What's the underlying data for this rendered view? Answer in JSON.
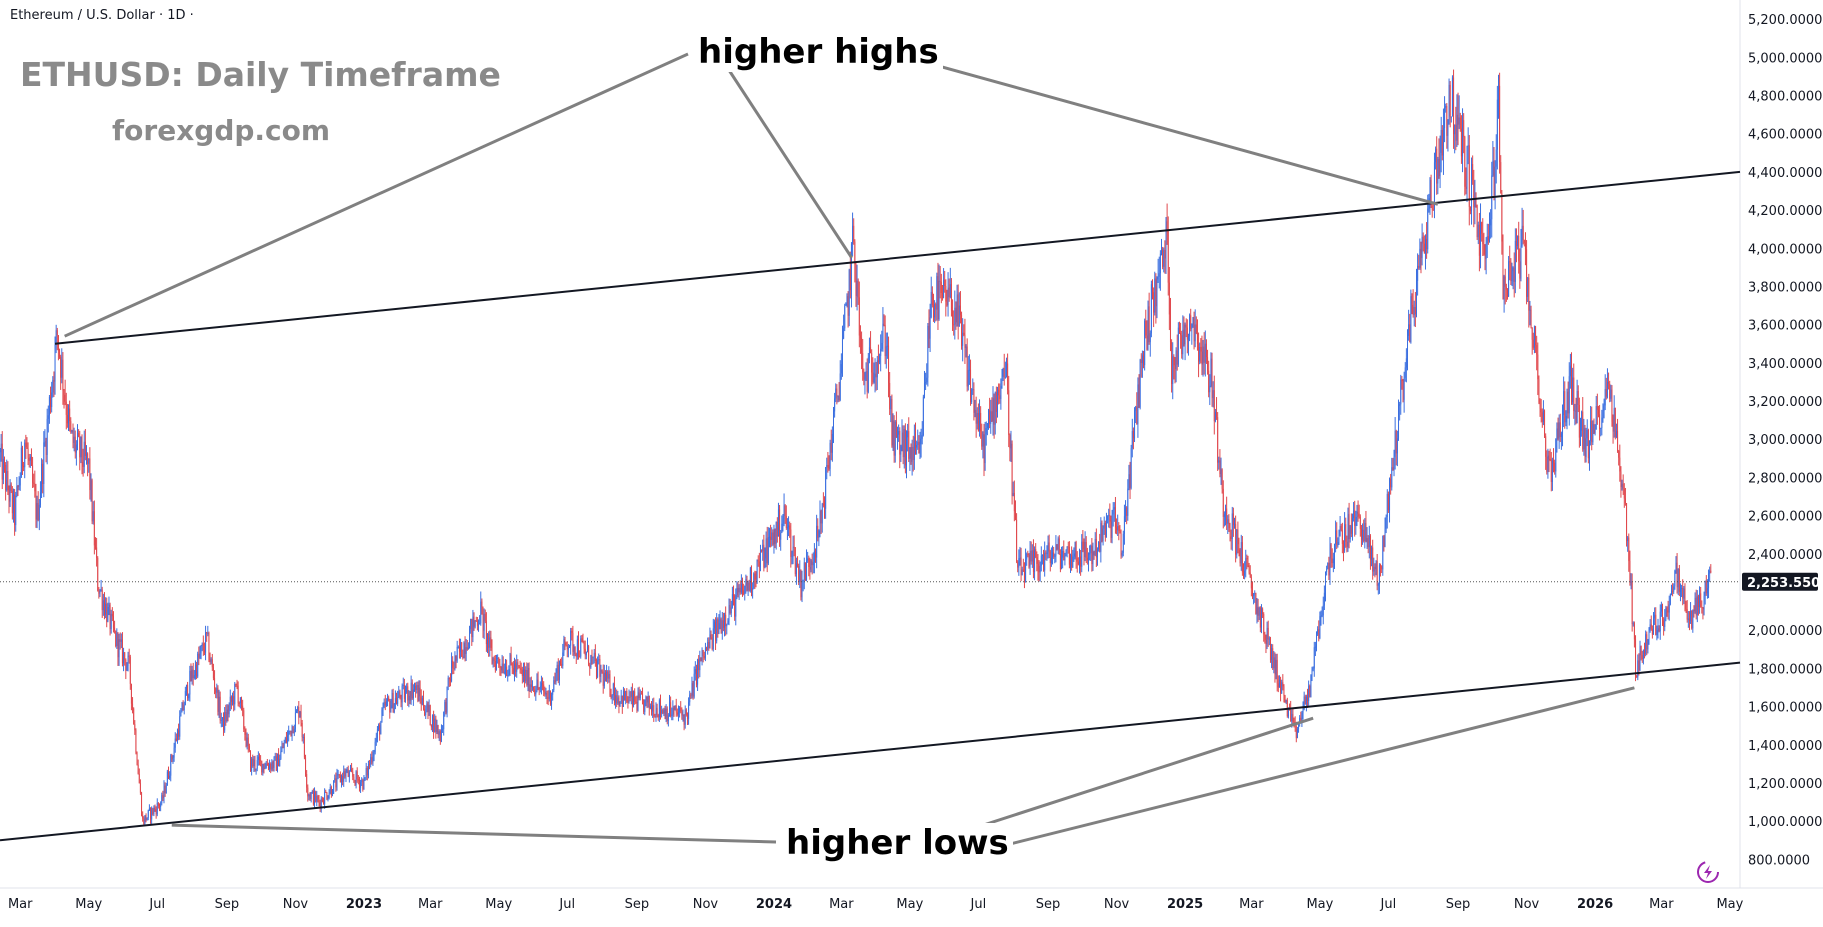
{
  "header": {
    "symbol_text": "Ethereum / U.S. Dollar · 1D ·"
  },
  "title": "ETHUSD: Daily Timeframe",
  "website": "forexgdp.com",
  "annotations": {
    "higher_highs": "higher highs",
    "higher_lows": "higher lows"
  },
  "colors": {
    "up": "#3b6fe0",
    "down": "#e0474c",
    "trendline": "#131722",
    "pointer": "#808080",
    "current_price_bg": "#131722"
  },
  "icons": {
    "corner": "lightning-circle-icon"
  },
  "chart_data": {
    "type": "candlestick",
    "title": "ETHUSD: Daily Timeframe",
    "x_axis": {
      "start": "2022-02-11",
      "end": "2026-05-10",
      "ticks": [
        {
          "date": "2022-03-01",
          "label": "Mar",
          "bold": false
        },
        {
          "date": "2022-05-01",
          "label": "May",
          "bold": false
        },
        {
          "date": "2022-07-01",
          "label": "Jul",
          "bold": false
        },
        {
          "date": "2022-09-01",
          "label": "Sep",
          "bold": false
        },
        {
          "date": "2022-11-01",
          "label": "Nov",
          "bold": false
        },
        {
          "date": "2023-01-01",
          "label": "2023",
          "bold": true
        },
        {
          "date": "2023-03-01",
          "label": "Mar",
          "bold": false
        },
        {
          "date": "2023-05-01",
          "label": "May",
          "bold": false
        },
        {
          "date": "2023-07-01",
          "label": "Jul",
          "bold": false
        },
        {
          "date": "2023-09-01",
          "label": "Sep",
          "bold": false
        },
        {
          "date": "2023-11-01",
          "label": "Nov",
          "bold": false
        },
        {
          "date": "2024-01-01",
          "label": "2024",
          "bold": true
        },
        {
          "date": "2024-03-01",
          "label": "Mar",
          "bold": false
        },
        {
          "date": "2024-05-01",
          "label": "May",
          "bold": false
        },
        {
          "date": "2024-07-01",
          "label": "Jul",
          "bold": false
        },
        {
          "date": "2024-09-01",
          "label": "Sep",
          "bold": false
        },
        {
          "date": "2024-11-01",
          "label": "Nov",
          "bold": false
        },
        {
          "date": "2025-01-01",
          "label": "2025",
          "bold": true
        },
        {
          "date": "2025-03-01",
          "label": "Mar",
          "bold": false
        },
        {
          "date": "2025-05-01",
          "label": "May",
          "bold": false
        },
        {
          "date": "2025-07-01",
          "label": "Jul",
          "bold": false
        },
        {
          "date": "2025-09-01",
          "label": "Sep",
          "bold": false
        },
        {
          "date": "2025-11-01",
          "label": "Nov",
          "bold": false
        },
        {
          "date": "2026-01-01",
          "label": "2026",
          "bold": true
        },
        {
          "date": "2026-03-01",
          "label": "Mar",
          "bold": false
        },
        {
          "date": "2026-05-01",
          "label": "May",
          "bold": false
        }
      ]
    },
    "y_axis": {
      "range": [
        650,
        5300
      ],
      "ticks": [
        800,
        1000,
        1200,
        1400,
        1600,
        1800,
        2000,
        2200,
        2400,
        2600,
        2800,
        3000,
        3200,
        3400,
        3600,
        3800,
        4000,
        4200,
        4400,
        4600,
        4800,
        5000,
        5200
      ],
      "tick_labels": [
        "800.0000",
        "1,000.0000",
        "1,200.0000",
        "1,400.0000",
        "1,600.0000",
        "1,800.0000",
        "2,000.0000",
        "2,200.0000",
        "2,400.0000",
        "2,600.0000",
        "2,800.0000",
        "3,000.0000",
        "3,200.0000",
        "3,400.0000",
        "3,600.0000",
        "3,800.0000",
        "4,000.0000",
        "4,200.0000",
        "4,400.0000",
        "4,600.0000",
        "4,800.0000",
        "5,000.0000",
        "5,200.0000"
      ]
    },
    "current_price": {
      "value": 2253.55,
      "label": "2,253.5500"
    },
    "price_path": [
      [
        "2022-02-11",
        2900
      ],
      [
        "2022-02-24",
        2600
      ],
      [
        "2022-03-05",
        3000
      ],
      [
        "2022-03-16",
        2600
      ],
      [
        "2022-04-03",
        3550
      ],
      [
        "2022-04-15",
        3000
      ],
      [
        "2022-05-01",
        2850
      ],
      [
        "2022-05-09",
        2250
      ],
      [
        "2022-05-25",
        1950
      ],
      [
        "2022-06-06",
        1800
      ],
      [
        "2022-06-18",
        1000
      ],
      [
        "2022-07-05",
        1100
      ],
      [
        "2022-07-28",
        1700
      ],
      [
        "2022-08-14",
        1950
      ],
      [
        "2022-08-28",
        1500
      ],
      [
        "2022-09-10",
        1700
      ],
      [
        "2022-09-22",
        1300
      ],
      [
        "2022-10-15",
        1300
      ],
      [
        "2022-11-05",
        1600
      ],
      [
        "2022-11-12",
        1150
      ],
      [
        "2022-11-22",
        1100
      ],
      [
        "2022-12-15",
        1250
      ],
      [
        "2023-01-01",
        1200
      ],
      [
        "2023-01-20",
        1600
      ],
      [
        "2023-02-15",
        1700
      ],
      [
        "2023-03-10",
        1450
      ],
      [
        "2023-03-20",
        1800
      ],
      [
        "2023-04-15",
        2100
      ],
      [
        "2023-04-25",
        1850
      ],
      [
        "2023-05-15",
        1800
      ],
      [
        "2023-06-15",
        1650
      ],
      [
        "2023-07-01",
        1950
      ],
      [
        "2023-07-15",
        1900
      ],
      [
        "2023-08-15",
        1650
      ],
      [
        "2023-09-15",
        1600
      ],
      [
        "2023-10-15",
        1550
      ],
      [
        "2023-10-25",
        1800
      ],
      [
        "2023-11-15",
        2050
      ],
      [
        "2023-12-10",
        2250
      ],
      [
        "2024-01-10",
        2600
      ],
      [
        "2024-01-25",
        2250
      ],
      [
        "2024-02-10",
        2500
      ],
      [
        "2024-03-01",
        3400
      ],
      [
        "2024-03-12",
        4050
      ],
      [
        "2024-03-20",
        3300
      ],
      [
        "2024-04-10",
        3550
      ],
      [
        "2024-04-15",
        3000
      ],
      [
        "2024-05-10",
        2900
      ],
      [
        "2024-05-20",
        3750
      ],
      [
        "2024-06-10",
        3700
      ],
      [
        "2024-07-05",
        2950
      ],
      [
        "2024-07-25",
        3400
      ],
      [
        "2024-08-05",
        2300
      ],
      [
        "2024-09-05",
        2400
      ],
      [
        "2024-10-10",
        2400
      ],
      [
        "2024-10-30",
        2600
      ],
      [
        "2024-11-05",
        2400
      ],
      [
        "2024-11-25",
        3500
      ],
      [
        "2024-12-16",
        4050
      ],
      [
        "2024-12-20",
        3400
      ],
      [
        "2025-01-06",
        3650
      ],
      [
        "2025-01-25",
        3300
      ],
      [
        "2025-02-03",
        2700
      ],
      [
        "2025-02-25",
        2300
      ],
      [
        "2025-03-15",
        1950
      ],
      [
        "2025-04-09",
        1450
      ],
      [
        "2025-04-22",
        1700
      ],
      [
        "2025-05-10",
        2400
      ],
      [
        "2025-06-05",
        2600
      ],
      [
        "2025-06-22",
        2250
      ],
      [
        "2025-07-20",
        3600
      ],
      [
        "2025-08-12",
        4400
      ],
      [
        "2025-08-24",
        4800
      ],
      [
        "2025-09-10",
        4400
      ],
      [
        "2025-09-25",
        3900
      ],
      [
        "2025-10-07",
        4700
      ],
      [
        "2025-10-11",
        3800
      ],
      [
        "2025-10-28",
        4000
      ],
      [
        "2025-11-10",
        3400
      ],
      [
        "2025-11-21",
        2800
      ],
      [
        "2025-12-10",
        3300
      ],
      [
        "2025-12-25",
        2950
      ],
      [
        "2026-01-14",
        3300
      ],
      [
        "2026-01-30",
        2500
      ],
      [
        "2026-02-06",
        1800
      ],
      [
        "2026-02-20",
        2000
      ],
      [
        "2026-03-05",
        2100
      ],
      [
        "2026-03-15",
        2300
      ],
      [
        "2026-03-25",
        2050
      ],
      [
        "2026-04-10",
        2200
      ],
      [
        "2026-04-14",
        2253
      ]
    ],
    "trendlines": {
      "resistance": [
        [
          "2022-04-01",
          3500
        ],
        [
          "2026-05-10",
          4400
        ]
      ],
      "support": [
        [
          "2022-02-11",
          900
        ],
        [
          "2026-05-10",
          1830
        ]
      ]
    },
    "annotation_points": {
      "higher_highs": [
        [
          "2022-04-06",
          3550
        ],
        [
          "2024-03-12",
          3950
        ],
        [
          "2025-08-14",
          4230
        ]
      ],
      "higher_lows": [
        [
          "2022-07-05",
          1000
        ],
        [
          "2025-04-25",
          1560
        ],
        [
          "2026-02-05",
          1740
        ]
      ]
    }
  }
}
